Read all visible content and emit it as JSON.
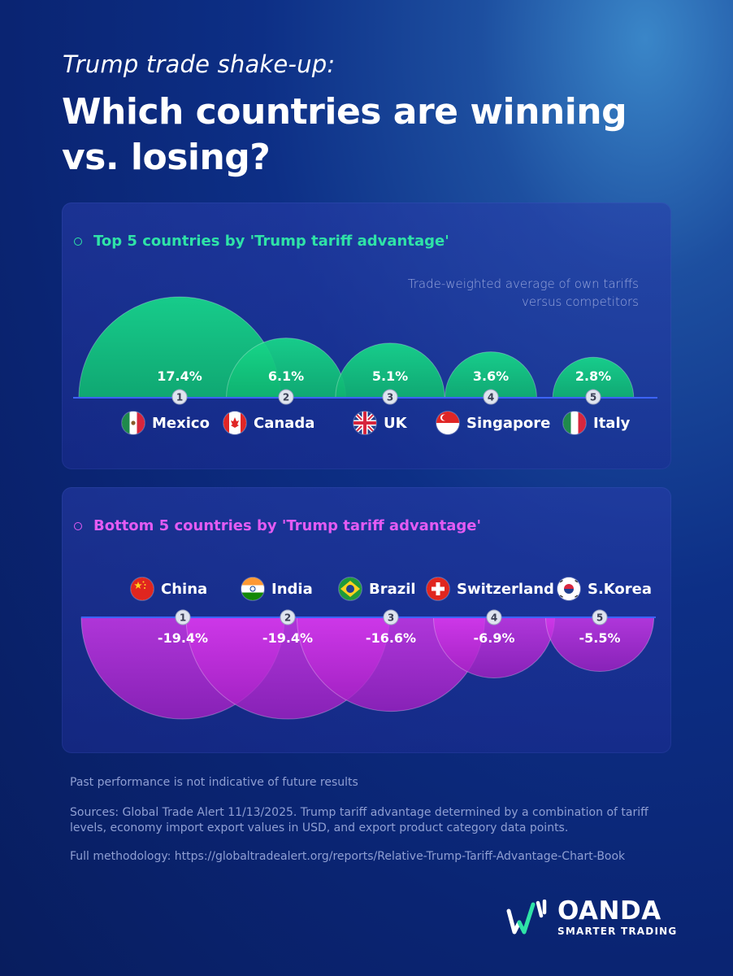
{
  "header": {
    "subtitle": "Trump trade shake-up:",
    "title": "Which countries are winning vs. losing?"
  },
  "colors": {
    "winners": "#2fe3a7",
    "losers": "#e35bf3",
    "axis": "#3c63ff"
  },
  "top_panel": {
    "heading": "Top 5 countries by 'Trump tariff advantage'",
    "note": "Trade-weighted average of own tariffs versus competitors"
  },
  "bottom_panel": {
    "heading": "Bottom 5 countries by 'Trump tariff advantage'"
  },
  "chart_data": [
    {
      "type": "bar",
      "title": "Top 5 countries by 'Trump tariff advantage'",
      "categories": [
        "Mexico",
        "Canada",
        "UK",
        "Singapore",
        "Italy"
      ],
      "ranks": [
        "1",
        "2",
        "3",
        "4",
        "5"
      ],
      "values": [
        17.4,
        6.1,
        5.1,
        3.6,
        2.8
      ],
      "value_labels": [
        "17.4%",
        "6.1%",
        "5.1%",
        "3.6%",
        "2.8%"
      ],
      "flag_icons": [
        "mexico-flag-icon",
        "canada-flag-icon",
        "uk-flag-icon",
        "singapore-flag-icon",
        "italy-flag-icon"
      ],
      "unit": "%"
    },
    {
      "type": "bar",
      "title": "Bottom 5 countries by 'Trump tariff advantage'",
      "categories": [
        "China",
        "India",
        "Brazil",
        "Switzerland",
        "S.Korea"
      ],
      "ranks": [
        "1",
        "2",
        "3",
        "4",
        "5"
      ],
      "values": [
        -19.4,
        -19.4,
        -16.6,
        -6.9,
        -5.5
      ],
      "value_labels": [
        "-19.4%",
        "-19.4%",
        "-16.6%",
        "-6.9%",
        "-5.5%"
      ],
      "flag_icons": [
        "china-flag-icon",
        "india-flag-icon",
        "brazil-flag-icon",
        "switzerland-flag-icon",
        "south-korea-flag-icon"
      ],
      "unit": "%"
    }
  ],
  "footer": {
    "disclaimer": "Past performance is not indicative of future results",
    "sources": "Sources: Global Trade Alert 11/13/2025. Trump tariff advantage determined by a combination of tariff levels, economy import export values in USD, and export product category data points.",
    "methodology": "Full methodology: https://globaltradealert.org/reports/Relative-Trump-Tariff-Advantage-Chart-Book"
  },
  "logo": {
    "name": "OANDA",
    "tagline": "SMARTER TRADING"
  }
}
